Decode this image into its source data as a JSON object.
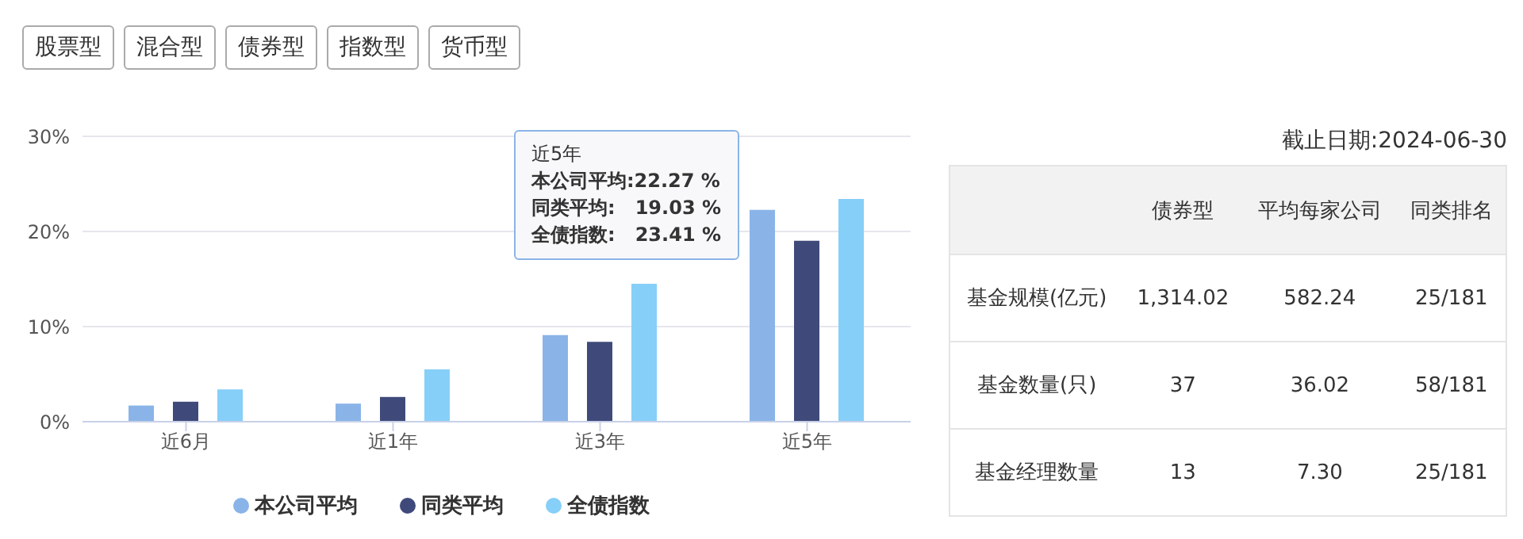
{
  "chart_data": [
    {
      "type": "bar",
      "categories": [
        "近6月",
        "近1年",
        "近3年",
        "近5年"
      ],
      "series": [
        {
          "name": "本公司平均",
          "color": "#8ab4e8",
          "values": [
            1.7,
            1.9,
            9.1,
            22.27
          ]
        },
        {
          "name": "同类平均",
          "color": "#3f4a7a",
          "values": [
            2.1,
            2.6,
            8.4,
            19.03
          ]
        },
        {
          "name": "全债指数",
          "color": "#86cff8",
          "values": [
            3.4,
            5.5,
            14.5,
            23.41
          ]
        }
      ],
      "ylim": [
        0,
        30
      ],
      "yticks": [
        {
          "value": 0,
          "label": "0%"
        },
        {
          "value": 10,
          "label": "10%"
        },
        {
          "value": 20,
          "label": "20%"
        },
        {
          "value": 30,
          "label": "30%"
        }
      ],
      "grid": "y",
      "legend": "bottom",
      "annotations": [
        "股票型",
        "混合型",
        "债券型",
        "指数型",
        "货币型",
        "近5年",
        "本公司平均:22.27 %",
        "同类平均:   19.03 %",
        "全债指数:   23.41 %"
      ]
    },
    {
      "type": "other",
      "categories": [
        null,
        "债券型",
        "平均每家公司",
        "同类排名"
      ],
      "y_categories": [
        "基金规模(亿元)",
        "基金数量(只)",
        "基金经理数量"
      ],
      "cell_labels": [
        [
          "1,314.02",
          "582.24",
          "25/181"
        ],
        [
          "37",
          "36.02",
          "58/181"
        ],
        [
          "13",
          "7.30",
          "25/181"
        ]
      ],
      "annotations": [
        "截止日期:2024-06-30"
      ]
    }
  ]
}
